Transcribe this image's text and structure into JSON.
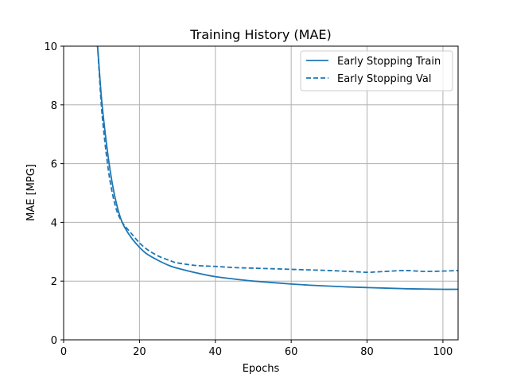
{
  "chart_data": {
    "type": "line",
    "title": "Training History (MAE)",
    "xlabel": "Epochs",
    "ylabel": "MAE [MPG]",
    "xlim": [
      0,
      104
    ],
    "ylim": [
      0,
      10
    ],
    "xticks": [
      0,
      20,
      40,
      60,
      80,
      100
    ],
    "yticks": [
      0,
      2,
      4,
      6,
      8,
      10
    ],
    "grid": true,
    "legend_position": "top-right",
    "series": [
      {
        "name": "Early Stopping Train",
        "color": "#1f77b4",
        "linestyle": "solid",
        "x": [
          8,
          9,
          10,
          11,
          12,
          13,
          14,
          15,
          16,
          18,
          20,
          22,
          25,
          28,
          30,
          35,
          40,
          45,
          50,
          55,
          60,
          65,
          70,
          75,
          80,
          85,
          90,
          95,
          100,
          104
        ],
        "y": [
          11.5,
          9.9,
          8.2,
          7.0,
          6.0,
          5.2,
          4.6,
          4.15,
          3.85,
          3.45,
          3.15,
          2.92,
          2.7,
          2.52,
          2.44,
          2.28,
          2.15,
          2.07,
          2.0,
          1.95,
          1.9,
          1.86,
          1.83,
          1.8,
          1.78,
          1.76,
          1.74,
          1.73,
          1.72,
          1.72
        ]
      },
      {
        "name": "Early Stopping Val",
        "color": "#1f77b4",
        "linestyle": "dashed",
        "x": [
          8,
          9,
          10,
          11,
          12,
          13,
          14,
          15,
          16,
          18,
          20,
          22,
          25,
          28,
          30,
          35,
          40,
          45,
          50,
          55,
          60,
          65,
          70,
          75,
          80,
          82,
          85,
          90,
          95,
          100,
          104
        ],
        "y": [
          12.0,
          9.9,
          7.9,
          6.6,
          5.6,
          4.9,
          4.4,
          4.1,
          3.9,
          3.6,
          3.3,
          3.08,
          2.85,
          2.7,
          2.62,
          2.53,
          2.5,
          2.46,
          2.44,
          2.42,
          2.4,
          2.38,
          2.36,
          2.33,
          2.3,
          2.31,
          2.33,
          2.36,
          2.33,
          2.34,
          2.36
        ]
      }
    ]
  }
}
